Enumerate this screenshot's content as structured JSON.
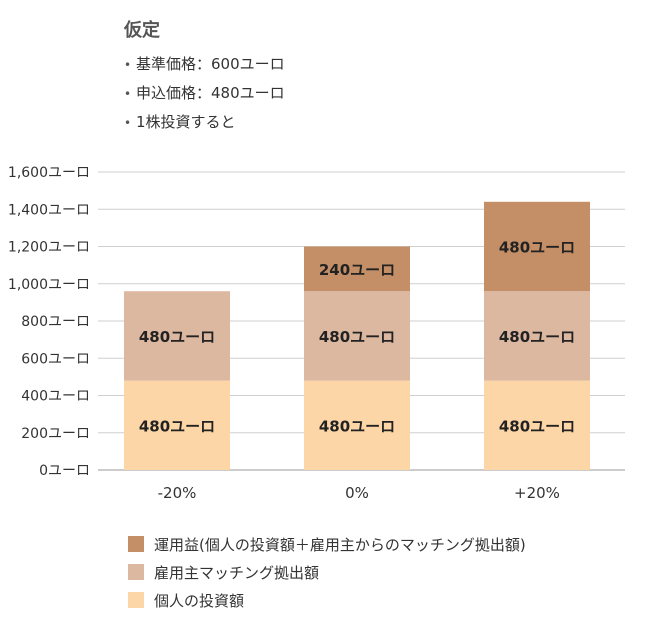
{
  "assumptions": {
    "title": "仮定",
    "items": [
      "基準価格：600ユーロ",
      "申込価格：480ユーロ",
      "1株投資すると"
    ]
  },
  "colors": {
    "gain": "#c48f67",
    "match": "#ddb8a1",
    "own": "#fcd6a6",
    "grid": "#cfcfcf",
    "axis": "#999999",
    "text": "#333333"
  },
  "chart_data": {
    "type": "bar",
    "stacked": true,
    "categories": [
      "-20%",
      "0%",
      "+20%"
    ],
    "y_tick_labels": [
      "0ユーロ",
      "200ユーロ",
      "400ユーロ",
      "600ユーロ",
      "800ユーロ",
      "1,000ユーロ",
      "1,200ユーロ",
      "1,400ユーロ",
      "1,600ユーロ"
    ],
    "y_ticks": [
      0,
      200,
      400,
      600,
      800,
      1000,
      1200,
      1400,
      1600
    ],
    "ylim": [
      0,
      1600
    ],
    "grid": true,
    "legend_position": "bottom",
    "series": [
      {
        "name": "個人の投資額",
        "values": [
          480,
          480,
          480
        ],
        "labels": [
          "480ユーロ",
          "480ユーロ",
          "480ユーロ"
        ],
        "color": "#fcd6a6"
      },
      {
        "name": "雇用主マッチング拠出額",
        "values": [
          480,
          480,
          480
        ],
        "labels": [
          "480ユーロ",
          "480ユーロ",
          "480ユーロ"
        ],
        "color": "#ddb8a1"
      },
      {
        "name": "運用益(個人の投資額＋雇用主からのマッチング拠出額)",
        "values": [
          0,
          240,
          480
        ],
        "labels": [
          "",
          "240ユーロ",
          "480ユーロ"
        ],
        "color": "#c48f67"
      }
    ],
    "totals": [
      960,
      1200,
      1440
    ]
  }
}
